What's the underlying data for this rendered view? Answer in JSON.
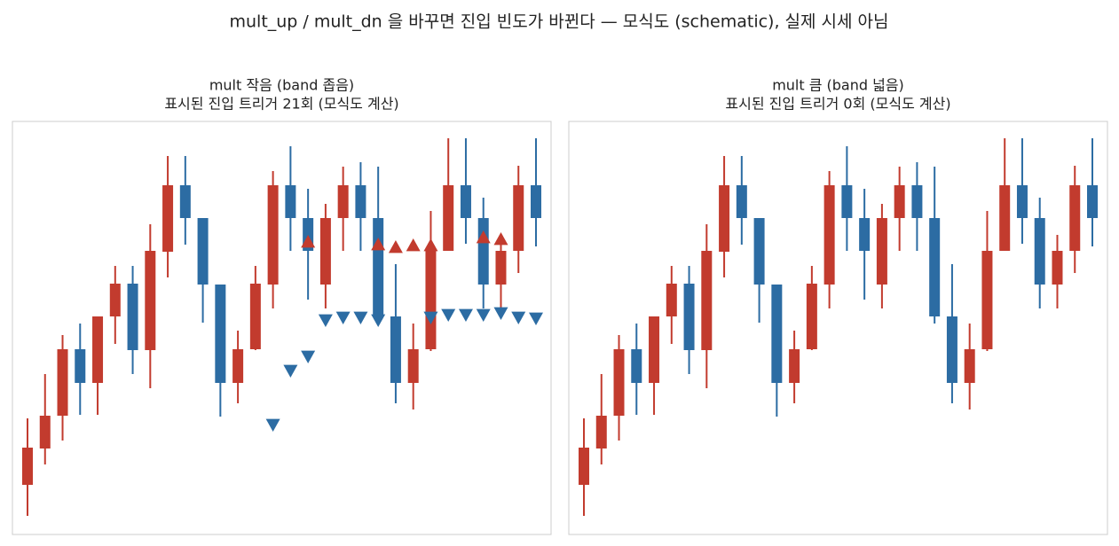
{
  "title": "mult_up / mult_dn 을 바꾸면 진입 빈도가 바뀐다 — 모식도 (schematic), 실제 시세 아님",
  "chart_data": [
    {
      "type": "candlestick",
      "title": "mult 작음 (band 좁음)",
      "subtitle": "표시된 진입 트리거 21회 (모식도 계산)",
      "ylim": [
        0,
        466
      ],
      "up_color": "#c23b2e",
      "down_color": "#2c6ca3",
      "open": [
        56,
        97,
        134,
        209,
        171,
        246,
        283,
        208,
        319,
        394,
        357,
        282,
        171,
        209,
        282,
        394,
        357,
        282,
        357,
        394,
        357,
        246,
        171,
        209,
        320,
        394,
        357,
        282,
        320,
        394
      ],
      "high": [
        131,
        181,
        225,
        238,
        246,
        303,
        303,
        350,
        427,
        427,
        357,
        282,
        230,
        303,
        410,
        438,
        390,
        373,
        415,
        420,
        415,
        305,
        238,
        365,
        447,
        447,
        380,
        338,
        416,
        447
      ],
      "low": [
        21,
        79,
        106,
        135,
        135,
        215,
        181,
        165,
        290,
        327,
        239,
        133,
        148,
        208,
        255,
        320,
        265,
        255,
        320,
        320,
        238,
        148,
        141,
        207,
        320,
        328,
        255,
        255,
        295,
        325
      ],
      "close": [
        98,
        134,
        209,
        171,
        246,
        283,
        208,
        320,
        394,
        357,
        282,
        171,
        209,
        283,
        394,
        357,
        320,
        357,
        394,
        357,
        246,
        171,
        209,
        320,
        394,
        357,
        282,
        320,
        394,
        357
      ],
      "markers_up": [
        null,
        null,
        null,
        null,
        null,
        null,
        null,
        null,
        null,
        null,
        null,
        null,
        null,
        null,
        null,
        null,
        330,
        null,
        null,
        null,
        327,
        324,
        326,
        326,
        null,
        null,
        335,
        333,
        null,
        null
      ],
      "markers_down": [
        null,
        null,
        null,
        null,
        null,
        null,
        null,
        null,
        null,
        null,
        null,
        null,
        null,
        null,
        124,
        185,
        201,
        242,
        245,
        245,
        242,
        null,
        null,
        245,
        248,
        248,
        248,
        250,
        245,
        244
      ]
    },
    {
      "type": "candlestick",
      "title": "mult 큼 (band 넓음)",
      "subtitle": "표시된 진입 트리거 0회 (모식도 계산)",
      "ylim": [
        0,
        466
      ],
      "up_color": "#c23b2e",
      "down_color": "#2c6ca3",
      "open": [
        56,
        97,
        134,
        209,
        171,
        246,
        283,
        208,
        319,
        394,
        357,
        282,
        171,
        209,
        282,
        394,
        357,
        282,
        357,
        394,
        357,
        246,
        171,
        209,
        320,
        394,
        357,
        282,
        320,
        394
      ],
      "high": [
        131,
        181,
        225,
        238,
        246,
        303,
        303,
        350,
        427,
        427,
        357,
        282,
        230,
        303,
        410,
        438,
        390,
        373,
        415,
        420,
        415,
        305,
        238,
        365,
        447,
        447,
        380,
        338,
        416,
        447
      ],
      "low": [
        21,
        79,
        106,
        135,
        135,
        215,
        181,
        165,
        290,
        327,
        239,
        133,
        148,
        208,
        255,
        320,
        265,
        255,
        320,
        320,
        238,
        148,
        141,
        207,
        320,
        328,
        255,
        255,
        295,
        325
      ],
      "close": [
        98,
        134,
        209,
        171,
        246,
        283,
        208,
        320,
        394,
        357,
        282,
        171,
        209,
        283,
        394,
        357,
        320,
        357,
        394,
        357,
        246,
        171,
        209,
        320,
        394,
        357,
        282,
        320,
        394,
        357
      ]
    }
  ]
}
